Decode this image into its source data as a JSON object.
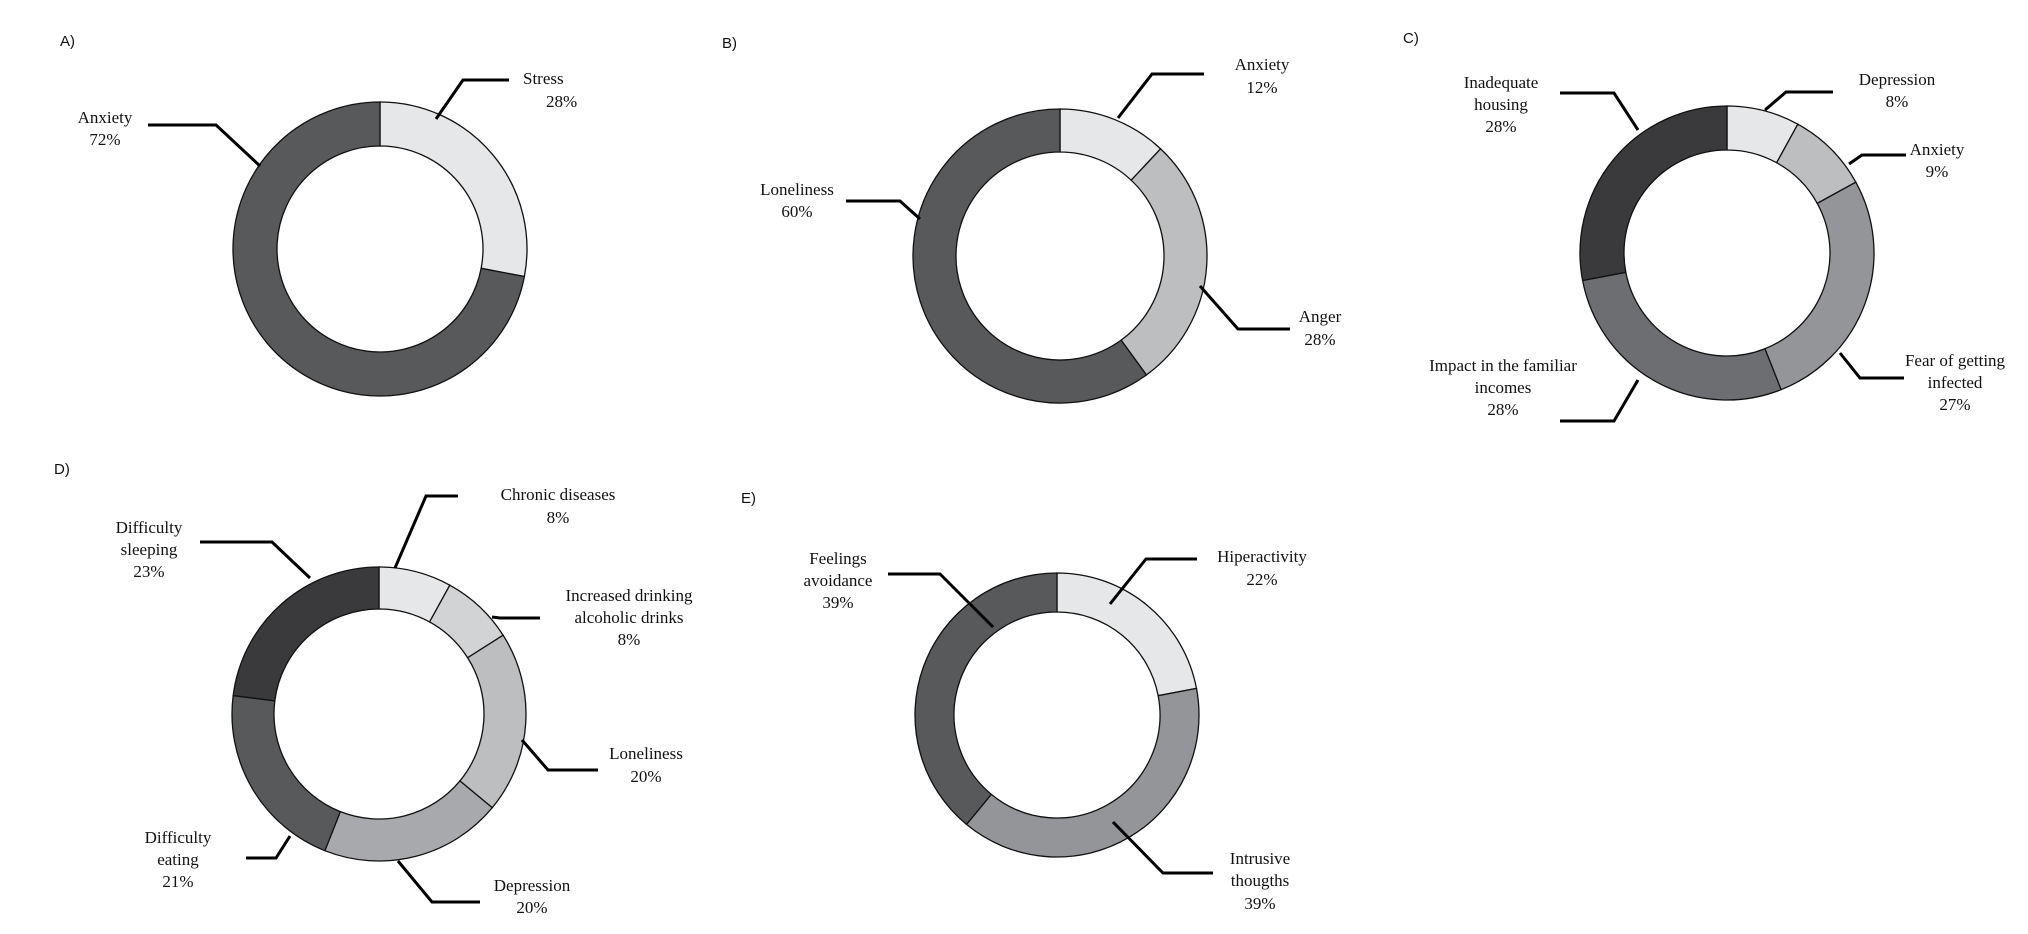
{
  "chart_data": [
    {
      "type": "pie",
      "panel": "A)",
      "categories": [
        "Stress",
        "Anxiety"
      ],
      "values": [
        28,
        72
      ],
      "value_labels": [
        "28%",
        "72%"
      ],
      "colors": [
        "#e6e7e8",
        "#58595b"
      ]
    },
    {
      "type": "pie",
      "panel": "B)",
      "categories": [
        "Anxiety",
        "Anger",
        "Loneliness"
      ],
      "values": [
        12,
        28,
        60
      ],
      "value_labels": [
        "12%",
        "28%",
        "60%"
      ],
      "colors": [
        "#e6e7e8",
        "#bcbec0",
        "#58595b"
      ]
    },
    {
      "type": "pie",
      "panel": "C)",
      "categories": [
        "Depression",
        "Anxiety",
        "Fear of getting infected",
        "Impact in the familiar incomes",
        "Inadequate housing"
      ],
      "values": [
        8,
        9,
        27,
        28,
        28
      ],
      "value_labels": [
        "8%",
        "9%",
        "27%",
        "28%",
        "28%"
      ],
      "colors": [
        "#e6e7e8",
        "#bcbec0",
        "#939598",
        "#6d6e71",
        "#3a3a3c"
      ]
    },
    {
      "type": "pie",
      "panel": "D)",
      "categories": [
        "Chronic diseases",
        "Increased drinking alcoholic drinks",
        "Loneliness",
        "Depression",
        "Difficulty eating",
        "Difficulty sleeping"
      ],
      "values": [
        8,
        8,
        20,
        20,
        21,
        23
      ],
      "value_labels": [
        "8%",
        "8%",
        "20%",
        "20%",
        "21%",
        "23%"
      ],
      "colors": [
        "#e6e7e8",
        "#d1d3d4",
        "#bcbec0",
        "#a7a9ac",
        "#58595b",
        "#3a3a3c"
      ]
    },
    {
      "type": "pie",
      "panel": "E)",
      "categories": [
        "Hiperactivity",
        "Intrusive thougths",
        "Feelings avoidance"
      ],
      "values": [
        22,
        39,
        39
      ],
      "value_labels": [
        "22%",
        "39%",
        "39%"
      ],
      "colors": [
        "#e6e7e8",
        "#939598",
        "#58595b"
      ]
    }
  ]
}
